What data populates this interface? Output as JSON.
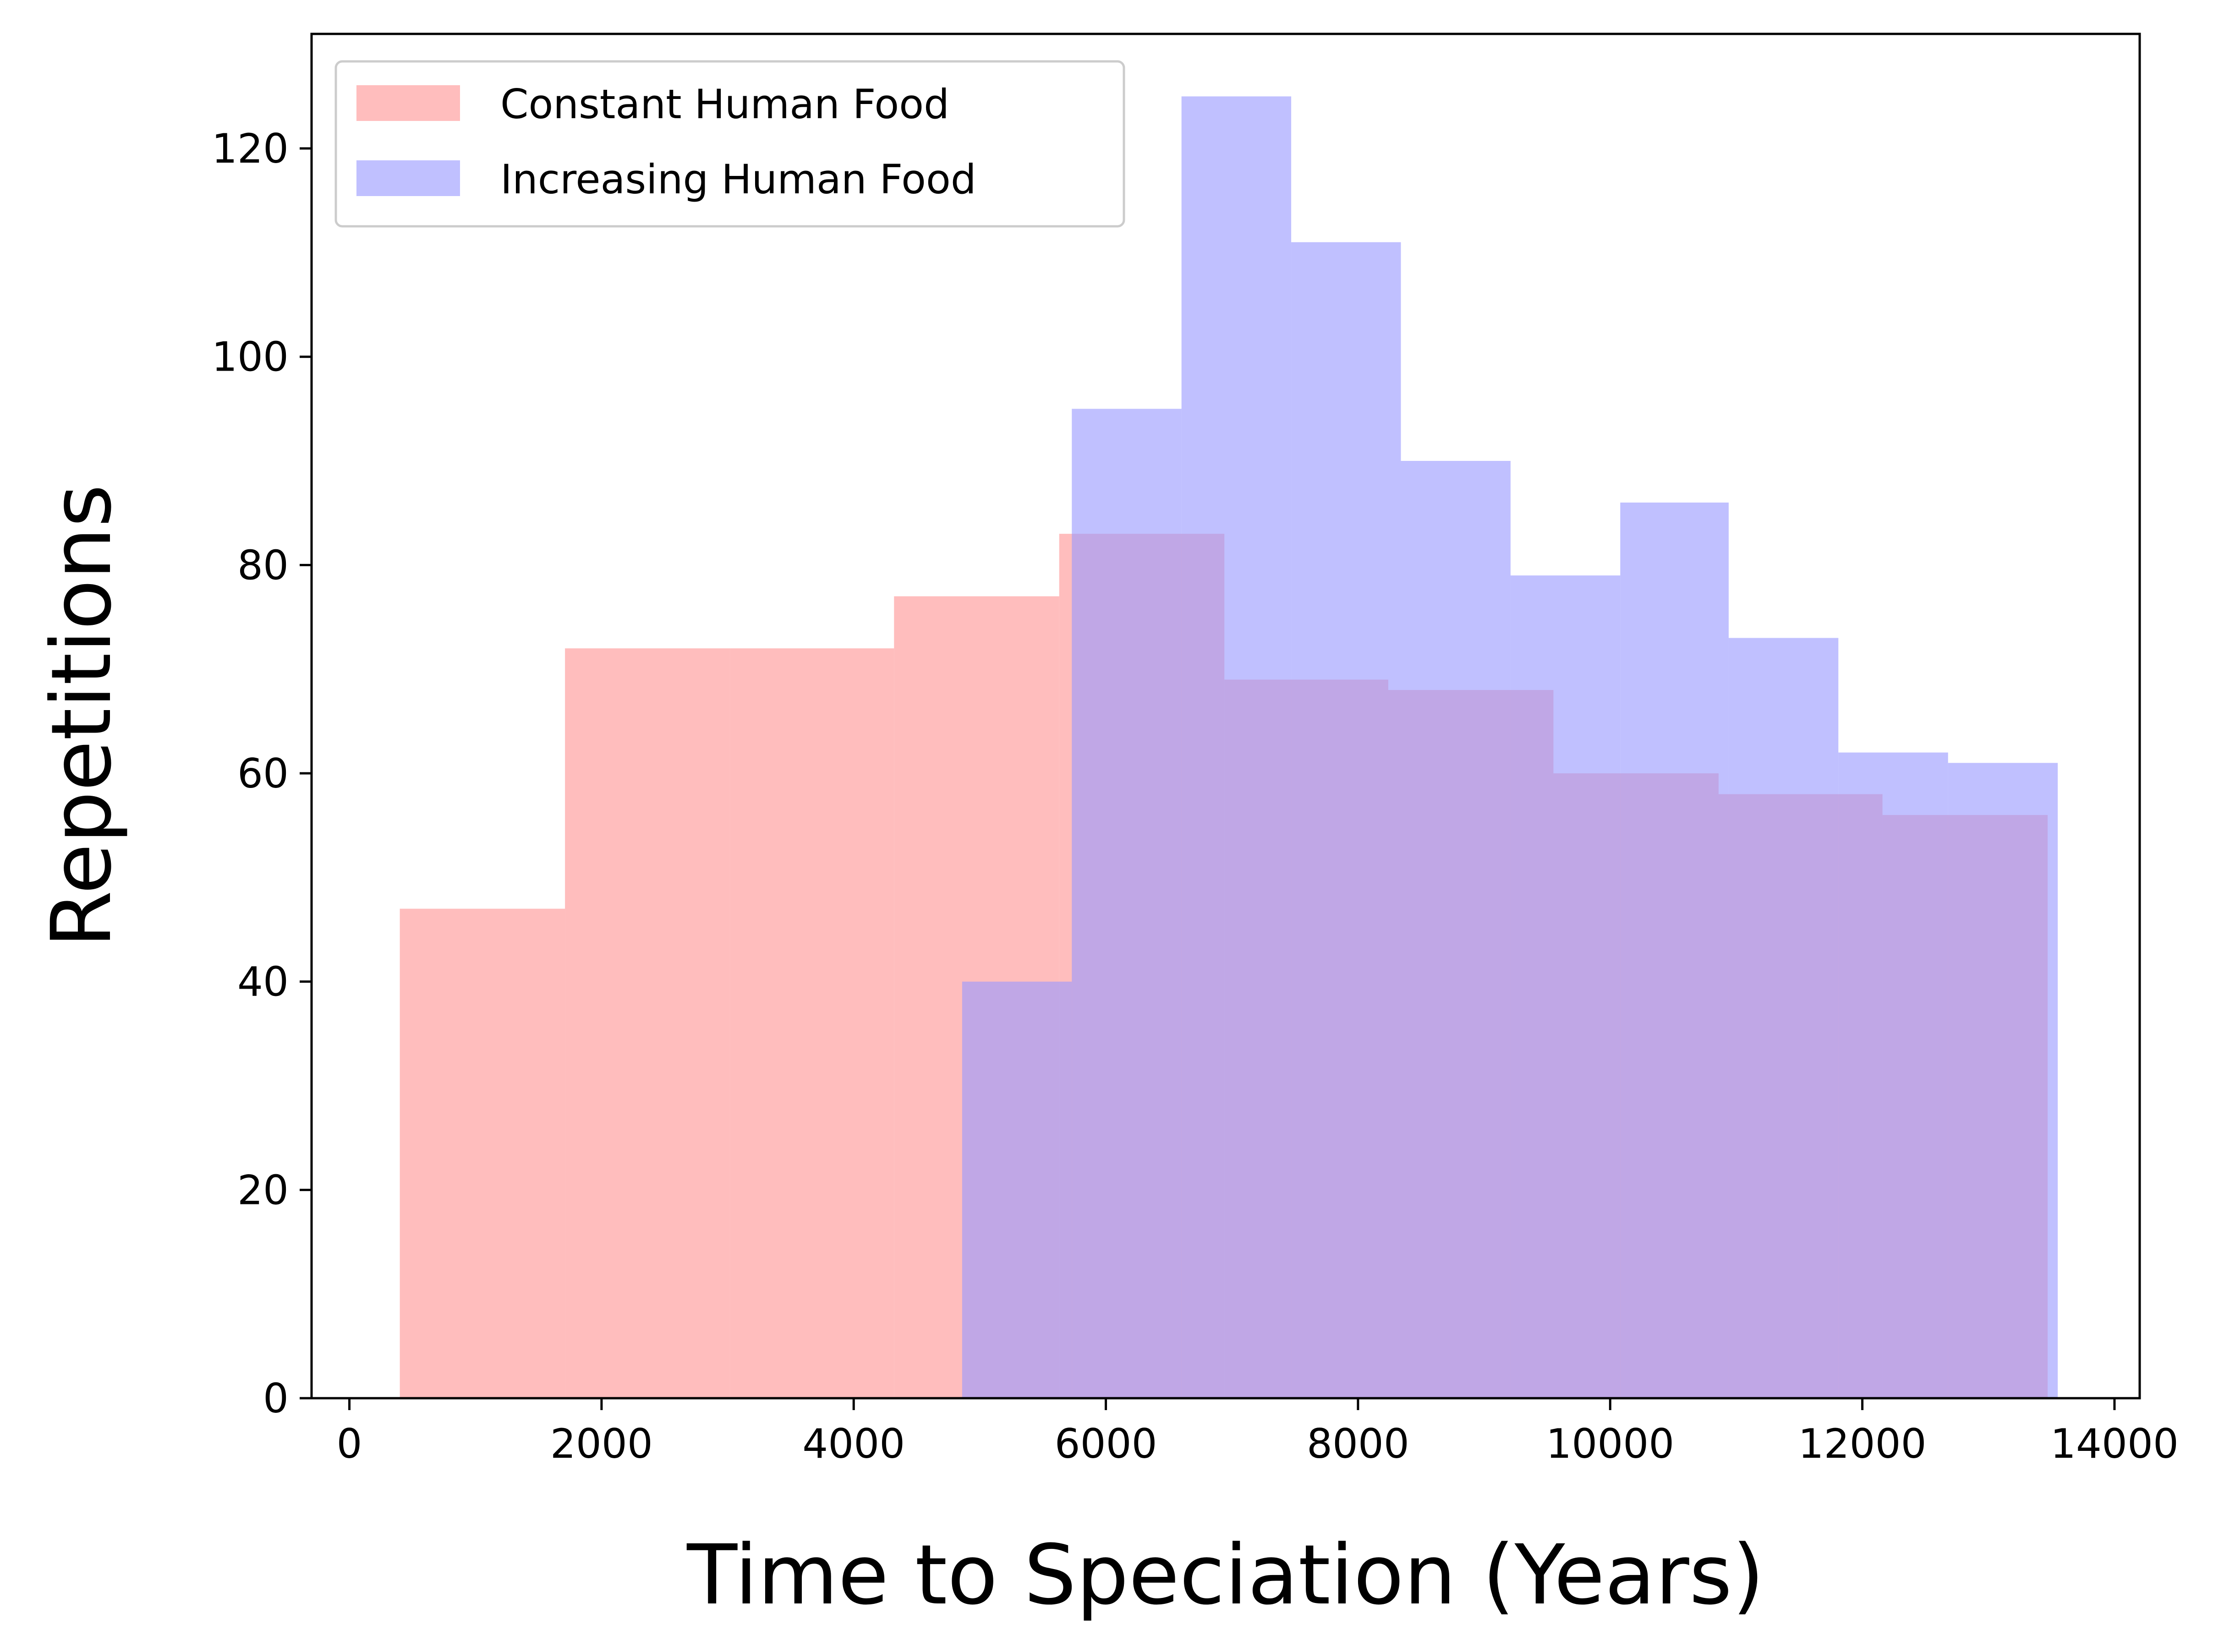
{
  "chart_data": {
    "type": "histogram",
    "xlabel": "Time to Speciation (Years)",
    "ylabel": "Repetitions",
    "xlim": [
      -300,
      14200
    ],
    "ylim": [
      0,
      131
    ],
    "xticks": [
      0,
      2000,
      4000,
      6000,
      8000,
      10000,
      12000,
      14000
    ],
    "yticks": [
      0,
      20,
      40,
      60,
      80,
      100,
      120
    ],
    "grid": false,
    "legend_position": "top-left",
    "series": [
      {
        "name": "Constant Human Food",
        "color": "#ff9999",
        "opacity": 0.65,
        "bin_edges": [
          400,
          1710,
          3020,
          4320,
          5630,
          6940,
          8240,
          9550,
          10860,
          12160,
          13470
        ],
        "counts": [
          47,
          72,
          72,
          77,
          83,
          69,
          68,
          60,
          58,
          56
        ]
      },
      {
        "name": "Increasing Human Food",
        "color": "#9999ff",
        "opacity": 0.62,
        "bin_edges": [
          4860,
          5730,
          6600,
          7470,
          8340,
          9210,
          10080,
          10940,
          11810,
          12680,
          13550
        ],
        "counts": [
          40,
          95,
          125,
          111,
          90,
          79,
          86,
          73,
          62,
          61
        ]
      }
    ]
  }
}
